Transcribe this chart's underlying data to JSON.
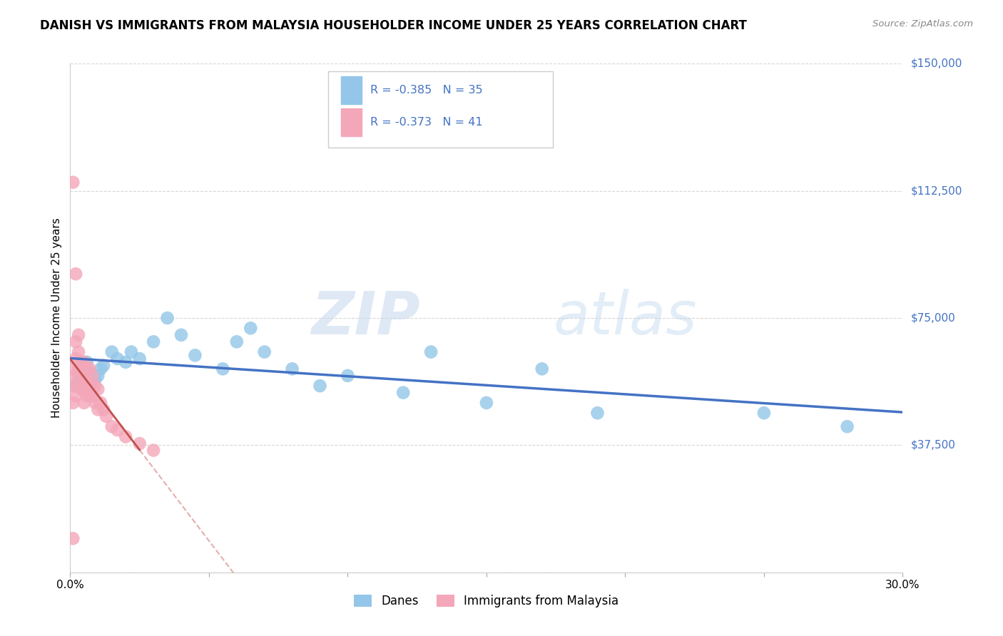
{
  "title": "DANISH VS IMMIGRANTS FROM MALAYSIA HOUSEHOLDER INCOME UNDER 25 YEARS CORRELATION CHART",
  "source": "Source: ZipAtlas.com",
  "ylabel": "Householder Income Under 25 years",
  "xlim": [
    0.0,
    0.3
  ],
  "ylim": [
    0,
    150000
  ],
  "yticks": [
    0,
    37500,
    75000,
    112500,
    150000
  ],
  "ytick_labels": [
    "",
    "$37,500",
    "$75,000",
    "$112,500",
    "$150,000"
  ],
  "xticks": [
    0.0,
    0.05,
    0.1,
    0.15,
    0.2,
    0.25,
    0.3
  ],
  "xtick_labels": [
    "0.0%",
    "",
    "",
    "",
    "",
    "",
    "30.0%"
  ],
  "watermark_zip": "ZIP",
  "watermark_atlas": "atlas",
  "legend_R1": "-0.385",
  "legend_N1": "35",
  "legend_R2": "-0.373",
  "legend_N2": "41",
  "color_danes": "#93C6E8",
  "color_malaysia": "#F4A7B9",
  "color_line_danes": "#4472C4",
  "color_line_malaysia": "#C0504D",
  "color_ytick": "#4472C4",
  "danes_x": [
    0.002,
    0.003,
    0.004,
    0.005,
    0.006,
    0.007,
    0.007,
    0.008,
    0.009,
    0.01,
    0.011,
    0.012,
    0.015,
    0.017,
    0.02,
    0.022,
    0.025,
    0.03,
    0.035,
    0.04,
    0.045,
    0.055,
    0.06,
    0.065,
    0.07,
    0.08,
    0.09,
    0.1,
    0.12,
    0.13,
    0.15,
    0.17,
    0.19,
    0.25,
    0.28
  ],
  "danes_y": [
    55000,
    58000,
    60000,
    57000,
    62000,
    59000,
    55000,
    56000,
    57000,
    58000,
    60000,
    61000,
    65000,
    63000,
    62000,
    65000,
    63000,
    68000,
    75000,
    70000,
    64000,
    60000,
    68000,
    72000,
    65000,
    60000,
    55000,
    58000,
    53000,
    65000,
    50000,
    60000,
    47000,
    47000,
    43000
  ],
  "malaysia_x": [
    0.001,
    0.001,
    0.001,
    0.001,
    0.002,
    0.002,
    0.002,
    0.002,
    0.003,
    0.003,
    0.003,
    0.003,
    0.004,
    0.004,
    0.004,
    0.005,
    0.005,
    0.005,
    0.005,
    0.006,
    0.006,
    0.006,
    0.007,
    0.007,
    0.007,
    0.008,
    0.008,
    0.009,
    0.009,
    0.01,
    0.01,
    0.011,
    0.012,
    0.013,
    0.015,
    0.017,
    0.02,
    0.025,
    0.03,
    0.002,
    0.001
  ],
  "malaysia_y": [
    115000,
    60000,
    55000,
    50000,
    68000,
    63000,
    58000,
    52000,
    70000,
    65000,
    60000,
    55000,
    62000,
    58000,
    54000,
    62000,
    58000,
    54000,
    50000,
    60000,
    56000,
    52000,
    60000,
    56000,
    52000,
    58000,
    52000,
    55000,
    50000,
    54000,
    48000,
    50000,
    48000,
    46000,
    43000,
    42000,
    40000,
    38000,
    36000,
    88000,
    10000
  ]
}
